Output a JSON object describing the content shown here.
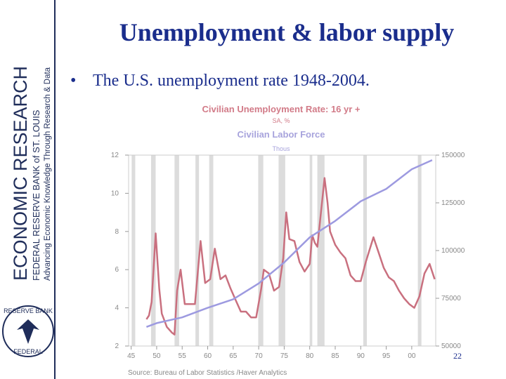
{
  "slide": {
    "title": "Unemployment & labor supply",
    "bullet": "The U.S. unemployment rate 1948-2004.",
    "page_number": "22"
  },
  "sidebar": {
    "main": "ECONOMIC RESEARCH",
    "bank": "FEDERAL RESERVE BANK of ST. LOUIS",
    "tagline": "Advancing Economic Knowledge Through Research & Data",
    "seal_top": "RESERVE BANK",
    "seal_bottom": "FEDERAL"
  },
  "chart_data": {
    "type": "line",
    "source": "Source:  Bureau of Labor Statistics /Haver Analytics",
    "series": [
      {
        "name": "Civilian Unemployment Rate: 16 yr +",
        "units": "SA, %",
        "color": "#c9707f",
        "axis": "y",
        "x": [
          1948.0,
          1948.5,
          1949.0,
          1949.8,
          1950.5,
          1951.0,
          1952.0,
          1953.0,
          1953.5,
          1954.0,
          1954.7,
          1955.5,
          1956.5,
          1957.5,
          1958.6,
          1959.5,
          1960.5,
          1961.4,
          1962.5,
          1963.5,
          1964.5,
          1965.5,
          1966.5,
          1967.5,
          1968.5,
          1969.5,
          1970.5,
          1971.0,
          1972.0,
          1973.0,
          1974.0,
          1974.8,
          1975.4,
          1976.0,
          1977.0,
          1978.0,
          1979.0,
          1980.0,
          1980.5,
          1981.0,
          1981.5,
          1982.9,
          1983.5,
          1984.0,
          1985.0,
          1986.0,
          1987.0,
          1988.0,
          1989.0,
          1990.0,
          1991.0,
          1992.5,
          1993.5,
          1994.5,
          1995.5,
          1996.5,
          1997.5,
          1998.5,
          1999.5,
          2000.5,
          2001.5,
          2002.5,
          2003.5,
          2004.5
        ],
        "values": [
          3.4,
          3.6,
          4.3,
          7.9,
          5.0,
          3.7,
          3.0,
          2.7,
          2.6,
          4.9,
          6.0,
          4.2,
          4.2,
          4.2,
          7.5,
          5.3,
          5.5,
          7.1,
          5.5,
          5.7,
          5.0,
          4.4,
          3.8,
          3.8,
          3.5,
          3.5,
          5.0,
          6.0,
          5.8,
          4.9,
          5.1,
          6.6,
          9.0,
          7.6,
          7.5,
          6.4,
          5.9,
          6.3,
          7.8,
          7.4,
          7.2,
          10.8,
          9.5,
          8.0,
          7.3,
          6.9,
          6.6,
          5.7,
          5.4,
          5.4,
          6.4,
          7.7,
          6.9,
          6.1,
          5.6,
          5.4,
          4.9,
          4.5,
          4.2,
          4.0,
          4.6,
          5.8,
          6.3,
          5.5
        ]
      },
      {
        "name": "Civilian Labor Force",
        "units": "Thous",
        "color": "#9d9ae0",
        "axis": "y2",
        "x": [
          1948,
          1950,
          1955,
          1960,
          1965,
          1970,
          1975,
          1980,
          1985,
          1990,
          1995,
          2000,
          2004
        ],
        "values": [
          60000,
          62000,
          65000,
          70000,
          74500,
          82800,
          93800,
          106900,
          115500,
          125800,
          132300,
          142600,
          147400
        ]
      }
    ],
    "recessions": [
      [
        1945.1,
        1945.8
      ],
      [
        1948.9,
        1949.8
      ],
      [
        1953.5,
        1954.4
      ],
      [
        1957.6,
        1958.3
      ],
      [
        1960.3,
        1961.1
      ],
      [
        1969.9,
        1970.9
      ],
      [
        1973.9,
        1975.2
      ],
      [
        1980.0,
        1980.5
      ],
      [
        1981.5,
        1982.9
      ],
      [
        1990.5,
        1991.2
      ],
      [
        2001.2,
        2001.9
      ]
    ],
    "xlim": [
      1944.5,
      2004.7
    ],
    "xticks": [
      {
        "value": 1945,
        "label": "45"
      },
      {
        "value": 1950,
        "label": "50"
      },
      {
        "value": 1955,
        "label": "55"
      },
      {
        "value": 1960,
        "label": "60"
      },
      {
        "value": 1965,
        "label": "65"
      },
      {
        "value": 1970,
        "label": "70"
      },
      {
        "value": 1975,
        "label": "75"
      },
      {
        "value": 1980,
        "label": "80"
      },
      {
        "value": 1985,
        "label": "85"
      },
      {
        "value": 1990,
        "label": "90"
      },
      {
        "value": 1995,
        "label": "95"
      },
      {
        "value": 2000,
        "label": "00"
      }
    ],
    "ylim": [
      2,
      12
    ],
    "yticks": [
      2,
      4,
      6,
      8,
      10,
      12
    ],
    "y2lim": [
      50000,
      150000
    ],
    "y2ticks": [
      50000,
      75000,
      100000,
      125000,
      150000
    ]
  }
}
